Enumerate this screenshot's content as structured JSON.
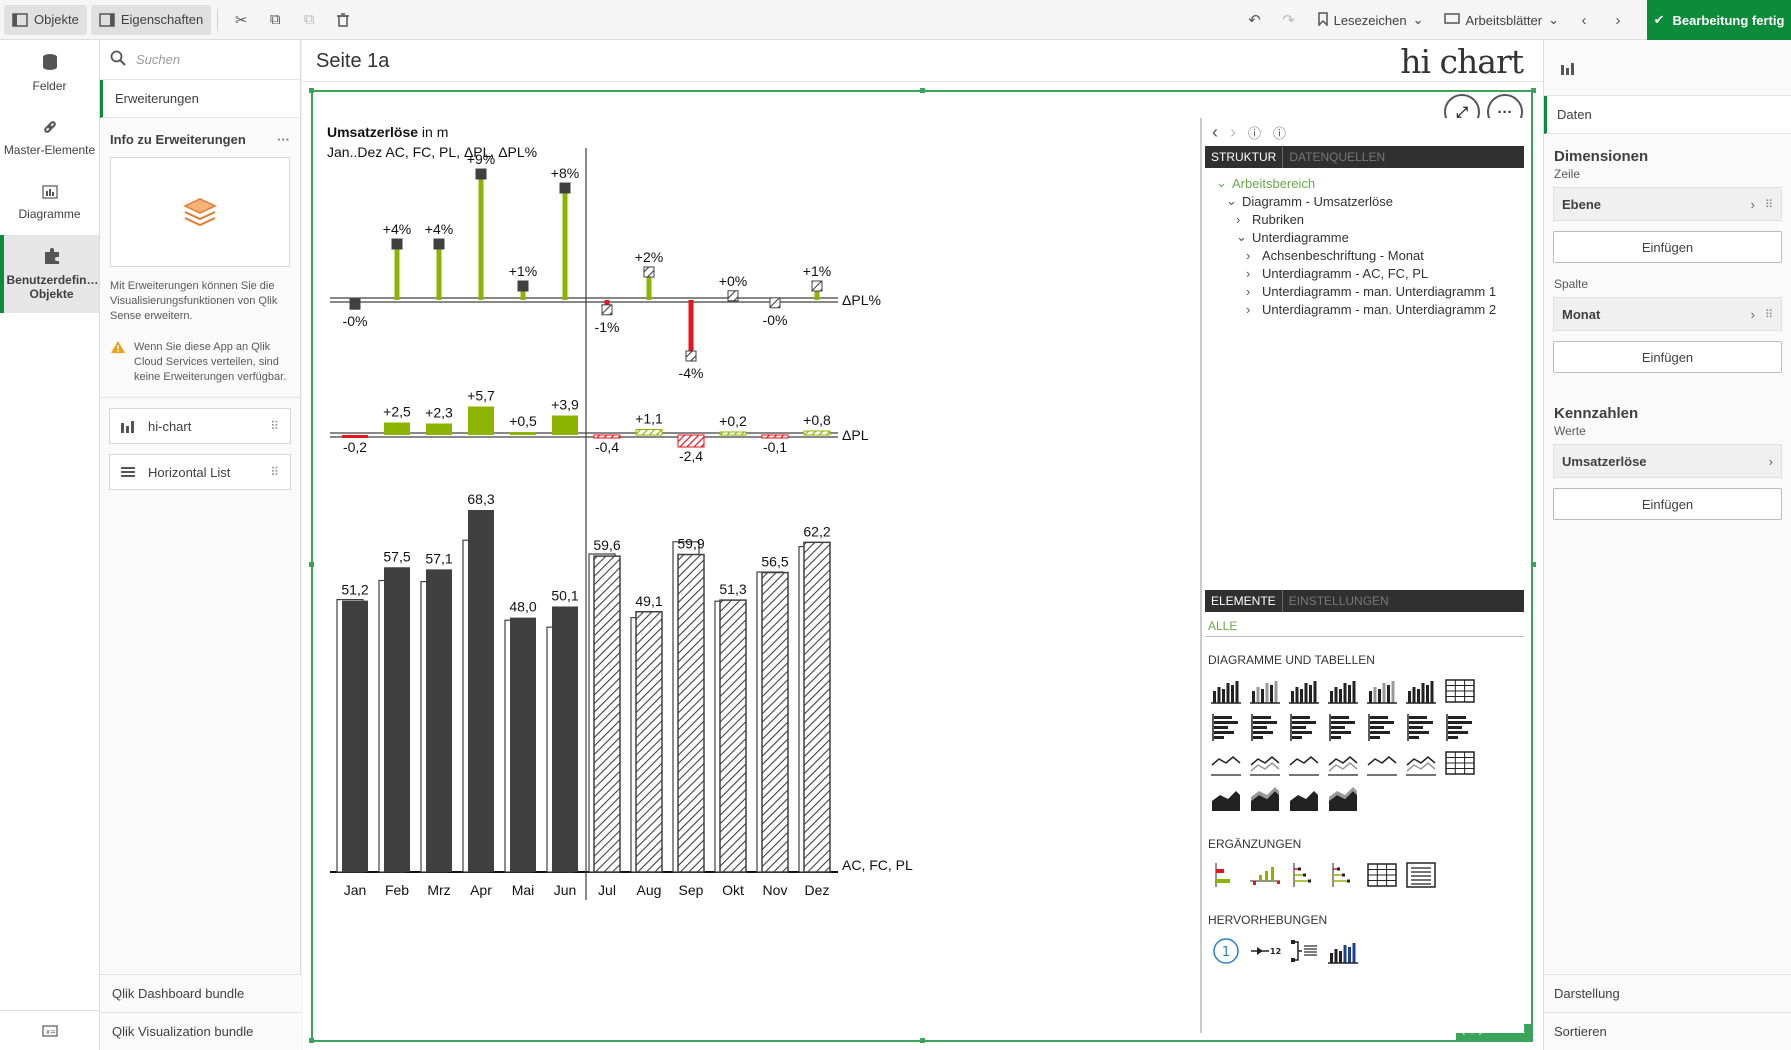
{
  "toolbar": {
    "objects_label": "Objekte",
    "properties_label": "Eigenschaften",
    "bookmarks_label": "Lesezeichen",
    "sheets_label": "Arbeitsblätter",
    "done_label": "Bearbeitung fertig",
    "accent": "#0c8b3a"
  },
  "rail": {
    "fields": "Felder",
    "master": "Master-Elemente",
    "charts": "Diagramme",
    "custom": "Benutzerdefin… Objekte"
  },
  "assets": {
    "search_placeholder": "Suchen",
    "extensions_label": "Erweiterungen",
    "info_title": "Info zu Erweiterungen",
    "info_text": "Mit Erweiterungen können Sie die Visualisierungsfunktionen von Qlik Sense erweitern.",
    "warning_text": "Wenn Sie diese App an Qlik Cloud Services verteilen, sind keine Erweiterungen verfügbar.",
    "items": [
      "hi-chart",
      "Horizontal List"
    ],
    "bundles": [
      "Qlik Dashboard bundle",
      "Qlik Visualization bundle"
    ]
  },
  "sheet": {
    "title": "Seite 1a",
    "logo": "hi chart",
    "status_pos": "(0,0)",
    "status_size": "24 x 12"
  },
  "chart_data": {
    "type": "bar",
    "title_bold": "Umsatzerlöse",
    "title_rest": " in m",
    "subtitle": "Jan..Dez AC, FC, PL, ΔPL, ΔPL%",
    "categories": [
      "Jan",
      "Feb",
      "Mrz",
      "Apr",
      "Mai",
      "Jun",
      "Jul",
      "Aug",
      "Sep",
      "Okt",
      "Nov",
      "Dez"
    ],
    "actual_months": 6,
    "ac_fc": [
      51.2,
      57.5,
      57.1,
      68.3,
      48.0,
      50.1,
      59.6,
      49.1,
      59.9,
      51.3,
      56.5,
      62.2
    ],
    "ac_fc_labels": [
      "51,2",
      "57,5",
      "57,1",
      "68,3",
      "48,0",
      "50,1",
      "59,6",
      "49,1",
      "59,9",
      "51,3",
      "56,5",
      "62,2"
    ],
    "pl": [
      51.4,
      55.0,
      54.8,
      62.6,
      47.5,
      46.2,
      60.0,
      48.0,
      62.3,
      51.1,
      56.6,
      61.4
    ],
    "delta_pl": [
      -0.2,
      2.5,
      2.3,
      5.7,
      0.5,
      3.9,
      -0.4,
      1.1,
      -2.4,
      0.2,
      -0.1,
      0.8
    ],
    "delta_pl_labels": [
      "-0,2",
      "+2,5",
      "+2,3",
      "+5,7",
      "+0,5",
      "+3,9",
      "-0,4",
      "+1,1",
      "-2,4",
      "+0,2",
      "-0,1",
      "+0,8"
    ],
    "delta_pl_pct": [
      -0.3,
      4,
      4,
      9,
      1,
      8,
      -0.7,
      2,
      -4,
      0.3,
      -0.2,
      1
    ],
    "delta_pl_pct_labels": [
      "-0%",
      "+4%",
      "+4%",
      "+9%",
      "+1%",
      "+8%",
      "-1%",
      "+2%",
      "-4%",
      "+0%",
      "-0%",
      "+1%"
    ],
    "row_labels": [
      "ΔPL%",
      "ΔPL",
      "AC, FC, PL"
    ],
    "colors": {
      "ac": "#404040",
      "positive": "#8cb400",
      "negative": "#e8141e"
    }
  },
  "editor": {
    "tab_structure": "STRUKTUR",
    "tab_sources": "DATENQUELLEN",
    "tree": [
      {
        "label": "Arbeitsbereich",
        "indent": 0,
        "open": true,
        "green": true
      },
      {
        "label": "Diagramm - Umsatzerlöse",
        "indent": 1,
        "open": true,
        "green": false
      },
      {
        "label": "Rubriken",
        "indent": 2,
        "open": false,
        "green": false
      },
      {
        "label": "Unterdiagramme",
        "indent": 2,
        "open": true,
        "green": false
      },
      {
        "label": "Achsenbeschriftung - Monat",
        "indent": 3,
        "open": false,
        "green": false
      },
      {
        "label": "Unterdiagramm - AC, FC, PL",
        "indent": 3,
        "open": false,
        "green": false
      },
      {
        "label": "Unterdiagramm - man. Unterdiagramm 1",
        "indent": 3,
        "open": false,
        "green": false
      },
      {
        "label": "Unterdiagramm - man. Unterdiagramm 2",
        "indent": 3,
        "open": false,
        "green": false
      }
    ],
    "tab_elements": "ELEMENTE",
    "tab_settings": "EINSTELLUNGEN",
    "filter_all": "ALLE",
    "section_charts": "DIAGRAMME UND TABELLEN",
    "section_additions": "ERGÄNZUNGEN",
    "section_highlights": "HERVORHEBUNGEN"
  },
  "props": {
    "data_tab": "Daten",
    "dimensions": "Dimensionen",
    "row_label": "Zeile",
    "row_field": "Ebene",
    "insert": "Einfügen",
    "column_label": "Spalte",
    "column_field": "Monat",
    "measures": "Kennzahlen",
    "values_label": "Werte",
    "measure_field": "Umsatzerlöse",
    "appearance": "Darstellung",
    "sorting": "Sortieren"
  }
}
